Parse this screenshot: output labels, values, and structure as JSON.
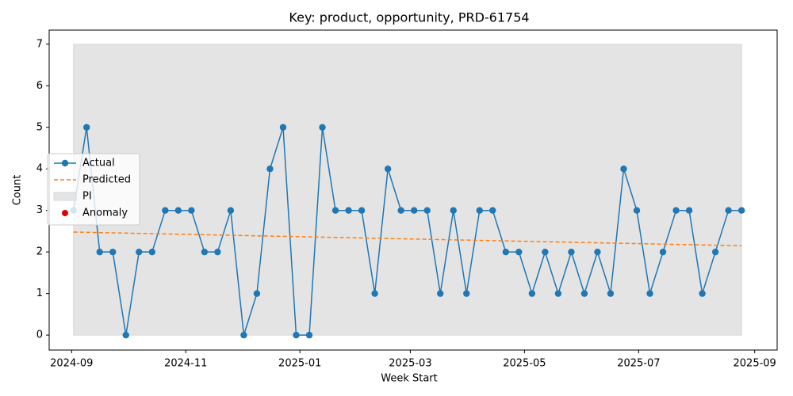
{
  "chart_data": {
    "type": "line",
    "title": "Key: product, opportunity, PRD-61754",
    "xlabel": "Week Start",
    "ylabel": "Count",
    "x": [
      "2024-09-02",
      "2024-09-09",
      "2024-09-16",
      "2024-09-23",
      "2024-09-30",
      "2024-10-07",
      "2024-10-14",
      "2024-10-21",
      "2024-10-28",
      "2024-11-04",
      "2024-11-11",
      "2024-11-18",
      "2024-11-25",
      "2024-12-02",
      "2024-12-09",
      "2024-12-16",
      "2024-12-23",
      "2024-12-30",
      "2025-01-06",
      "2025-01-13",
      "2025-01-20",
      "2025-01-27",
      "2025-02-03",
      "2025-02-10",
      "2025-02-17",
      "2025-02-24",
      "2025-03-03",
      "2025-03-10",
      "2025-03-17",
      "2025-03-24",
      "2025-03-31",
      "2025-04-07",
      "2025-04-14",
      "2025-04-21",
      "2025-04-28",
      "2025-05-05",
      "2025-05-12",
      "2025-05-19",
      "2025-05-26",
      "2025-06-02",
      "2025-06-09",
      "2025-06-16",
      "2025-06-23",
      "2025-06-30",
      "2025-07-07",
      "2025-07-14",
      "2025-07-21",
      "2025-07-28",
      "2025-08-04",
      "2025-08-11",
      "2025-08-18",
      "2025-08-25"
    ],
    "series": [
      {
        "name": "Actual",
        "color": "#1f77b4",
        "style": "solid-marker",
        "values": [
          3,
          5,
          2,
          2,
          0,
          2,
          2,
          3,
          3,
          3,
          2,
          2,
          3,
          0,
          1,
          4,
          5,
          0,
          0,
          5,
          3,
          3,
          3,
          1,
          4,
          3,
          3,
          3,
          1,
          3,
          1,
          3,
          3,
          2,
          2,
          1,
          2,
          1,
          2,
          1,
          2,
          1,
          4,
          3,
          1,
          2,
          3,
          3,
          1,
          2,
          3,
          3
        ]
      },
      {
        "name": "Predicted",
        "color": "#ff7f0e",
        "style": "dashed",
        "x": [
          "2024-09-02",
          "2025-08-25"
        ],
        "values": [
          2.48,
          2.15
        ]
      }
    ],
    "band": {
      "name": "PI",
      "color": "#e4e4e4",
      "x": [
        "2024-09-02",
        "2025-08-25"
      ],
      "lower": [
        0,
        0
      ],
      "upper": [
        7,
        7
      ]
    },
    "anomalies": {
      "name": "Anomaly",
      "color": "#e00000",
      "x": [],
      "values": []
    },
    "legend": "center left",
    "xlim": [
      "2024-08-20",
      "2025-09-13"
    ],
    "ylim": [
      -0.36,
      7.34
    ],
    "yticks": [
      0,
      1,
      2,
      3,
      4,
      5,
      6,
      7
    ],
    "xticks": [
      {
        "value": "2024-09-01",
        "label": "2024-09"
      },
      {
        "value": "2024-11-01",
        "label": "2024-11"
      },
      {
        "value": "2025-01-01",
        "label": "2025-01"
      },
      {
        "value": "2025-03-01",
        "label": "2025-03"
      },
      {
        "value": "2025-05-01",
        "label": "2025-05"
      },
      {
        "value": "2025-07-01",
        "label": "2025-07"
      },
      {
        "value": "2025-09-01",
        "label": "2025-09"
      }
    ]
  }
}
